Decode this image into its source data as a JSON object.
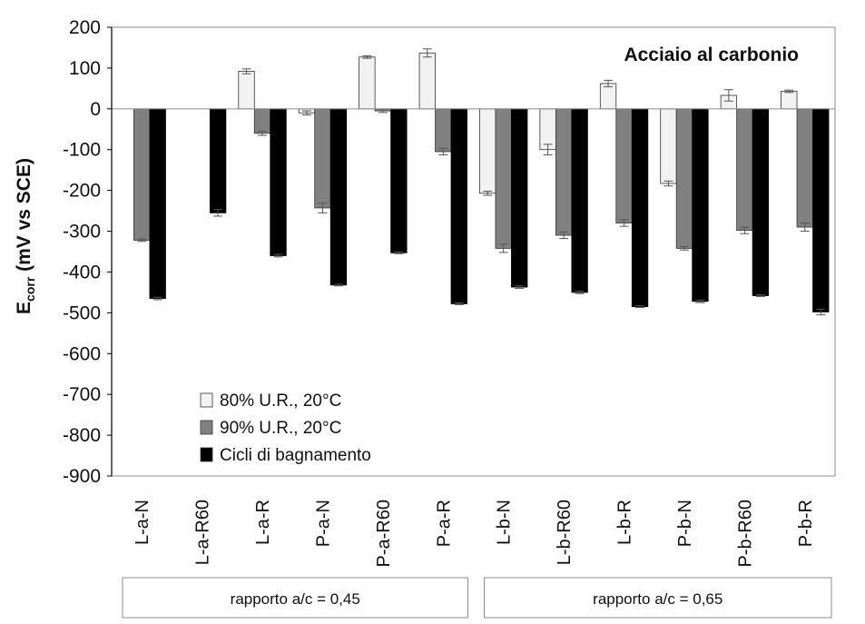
{
  "chart_data": {
    "type": "bar",
    "title": "Acciaio al carbonio",
    "ylabel_main": "E",
    "ylabel_sub": "corr",
    "ylabel_rest": " (mV vs SCE)",
    "ylim": [
      -900,
      200
    ],
    "yticks": [
      200,
      100,
      0,
      -100,
      -200,
      -300,
      -400,
      -500,
      -600,
      -700,
      -800,
      -900
    ],
    "grid": false,
    "legend_position": "bottom-left",
    "categories": [
      "L-a-N",
      "L-a-R60",
      "L-a-R",
      "P-a-N",
      "P-a-R60",
      "P-a-R",
      "L-b-N",
      "L-b-R60",
      "L-b-R",
      "P-b-N",
      "P-b-R60",
      "P-b-R"
    ],
    "series": [
      {
        "name": "80% U.R., 20°C",
        "color": "#f2f2f2",
        "values": [
          null,
          null,
          92,
          -10,
          127,
          137,
          -207,
          -100,
          62,
          -183,
          33,
          43
        ],
        "errors": [
          0,
          0,
          6,
          5,
          3,
          10,
          5,
          13,
          8,
          6,
          14,
          3
        ]
      },
      {
        "name": "90% U.R., 20°C",
        "color": "#808080",
        "values": [
          -322,
          null,
          -60,
          -243,
          -5,
          -105,
          -342,
          -310,
          -280,
          -342,
          -298,
          -290
        ],
        "errors": [
          3,
          0,
          5,
          12,
          4,
          8,
          10,
          8,
          8,
          4,
          8,
          10
        ]
      },
      {
        "name": "Cicli di bagnamento",
        "color": "#000000",
        "values": [
          -465,
          -255,
          -360,
          -432,
          -353,
          -478,
          -437,
          -450,
          -485,
          -472,
          -458,
          -498
        ],
        "errors": [
          3,
          8,
          3,
          2,
          2,
          2,
          3,
          3,
          2,
          3,
          2,
          7
        ]
      }
    ],
    "groups": [
      {
        "label": "rapporto  a/c = 0,45",
        "span": [
          0,
          5
        ]
      },
      {
        "label": "rapporto  a/c = 0,65",
        "span": [
          6,
          11
        ]
      }
    ]
  }
}
